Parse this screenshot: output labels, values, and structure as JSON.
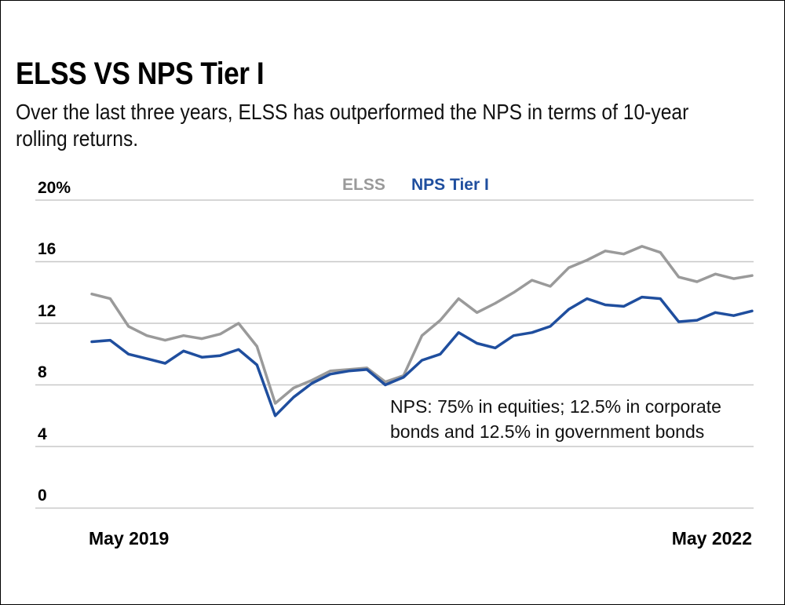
{
  "header": {
    "title": "ELSS VS NPS Tier I",
    "subtitle": "Over the last three years, ELSS has outperformed the NPS in terms of 10-year rolling returns."
  },
  "colors": {
    "elss": "#9a9a9a",
    "nps": "#1f4e9e",
    "grid": "#c8c8c8"
  },
  "chart_data": {
    "type": "line",
    "y_ticks": [
      "20%",
      "16",
      "12",
      "8",
      "4",
      "0"
    ],
    "ylim": [
      0,
      20
    ],
    "x_ticks": [
      "May 2019",
      "May 2022"
    ],
    "grid": true,
    "legend_position": "top-center",
    "annotation_lines": [
      "NPS: 75% in equities; 12.5% in corporate",
      "bonds and 12.5% in government bonds"
    ],
    "series": [
      {
        "name": "ELSS",
        "color": "#9a9a9a",
        "x": [
          "2019-05",
          "2019-06",
          "2019-07",
          "2019-08",
          "2019-09",
          "2019-10",
          "2019-11",
          "2019-12",
          "2020-01",
          "2020-02",
          "2020-03",
          "2020-04",
          "2020-05",
          "2020-06",
          "2020-07",
          "2020-08",
          "2020-09",
          "2020-10",
          "2020-11",
          "2020-12",
          "2021-01",
          "2021-02",
          "2021-03",
          "2021-04",
          "2021-05",
          "2021-06",
          "2021-07",
          "2021-08",
          "2021-09",
          "2021-10",
          "2021-11",
          "2021-12",
          "2022-01",
          "2022-02",
          "2022-03",
          "2022-04",
          "2022-05"
        ],
        "values": [
          13.9,
          13.6,
          11.8,
          11.2,
          10.9,
          11.2,
          11.0,
          11.3,
          12.0,
          10.5,
          6.8,
          7.8,
          8.3,
          8.9,
          9.0,
          9.1,
          8.2,
          8.6,
          11.2,
          12.2,
          13.6,
          12.7,
          13.3,
          14.0,
          14.8,
          14.4,
          15.6,
          16.1,
          16.7,
          16.5,
          17.0,
          16.6,
          15.0,
          14.7,
          15.2,
          14.9,
          15.1
        ]
      },
      {
        "name": "NPS Tier I",
        "color": "#1f4e9e",
        "x": [
          "2019-05",
          "2019-06",
          "2019-07",
          "2019-08",
          "2019-09",
          "2019-10",
          "2019-11",
          "2019-12",
          "2020-01",
          "2020-02",
          "2020-03",
          "2020-04",
          "2020-05",
          "2020-06",
          "2020-07",
          "2020-08",
          "2020-09",
          "2020-10",
          "2020-11",
          "2020-12",
          "2021-01",
          "2021-02",
          "2021-03",
          "2021-04",
          "2021-05",
          "2021-06",
          "2021-07",
          "2021-08",
          "2021-09",
          "2021-10",
          "2021-11",
          "2021-12",
          "2022-01",
          "2022-02",
          "2022-03",
          "2022-04",
          "2022-05"
        ],
        "values": [
          10.8,
          10.9,
          10.0,
          9.7,
          9.4,
          10.2,
          9.8,
          9.9,
          10.3,
          9.3,
          6.0,
          7.2,
          8.1,
          8.7,
          8.9,
          9.0,
          8.0,
          8.5,
          9.6,
          10.0,
          11.4,
          10.7,
          10.4,
          11.2,
          11.4,
          11.8,
          12.9,
          13.6,
          13.2,
          13.1,
          13.7,
          13.6,
          12.1,
          12.2,
          12.7,
          12.5,
          12.8
        ]
      }
    ]
  }
}
